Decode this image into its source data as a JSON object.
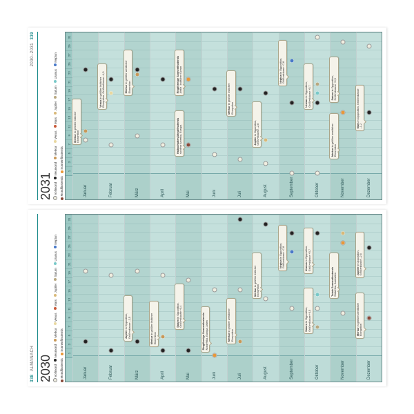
{
  "header": {
    "left_page_num": "338",
    "left_label": "ALMANACH",
    "right_label": "2030–2031",
    "right_page_num": "339"
  },
  "colors": {
    "vollmond": "#f0eee0",
    "neumond": "#222222",
    "merkur": "#c89858",
    "venus": "#e8d8a0",
    "mars": "#c85838",
    "jupiter": "#d8b878",
    "saturn": "#b8a880",
    "uranus": "#78c8c8",
    "neptun": "#4878c8",
    "mondfinsternis": "#884838",
    "sonnenfinsternis": "#e89838"
  },
  "legend": [
    {
      "key": "vollmond",
      "label": "Vollmond"
    },
    {
      "key": "neumond",
      "label": "Neumond"
    },
    {
      "key": "merkur",
      "label": "Merkur"
    },
    {
      "key": "venus",
      "label": "Venus"
    },
    {
      "key": "mars",
      "label": "Mars"
    },
    {
      "key": "jupiter",
      "label": "Jupiter"
    },
    {
      "key": "saturn",
      "label": "Saturn"
    },
    {
      "key": "uranus",
      "label": "Uranus"
    },
    {
      "key": "neptun",
      "label": "Neptun"
    },
    {
      "key": "mondfinsternis",
      "label": "Mondfinsternis"
    },
    {
      "key": "sonnenfinsternis",
      "label": "Sonnenfinsternis"
    }
  ],
  "date_ticks": [
    "1",
    "3",
    "5",
    "7",
    "9",
    "11",
    "13",
    "15",
    "17",
    "19",
    "21",
    "23",
    "25",
    "27",
    "29",
    "31"
  ],
  "months": [
    "Januar",
    "Februar",
    "März",
    "April",
    "Mai",
    "Juni",
    "Juli",
    "August",
    "September",
    "Oktober",
    "November",
    "Dezember"
  ],
  "years": {
    "2030": {
      "label": "2030",
      "events": [
        {
          "month": 0,
          "day": 19,
          "type": "moon",
          "phase": "full"
        },
        {
          "month": 0,
          "day": 4,
          "type": "moon",
          "phase": "new"
        },
        {
          "month": 1,
          "day": 18,
          "type": "moon",
          "phase": "full"
        },
        {
          "month": 1,
          "day": 2,
          "type": "moon",
          "phase": "new"
        },
        {
          "month": 2,
          "day": 19,
          "type": "moon",
          "phase": "full"
        },
        {
          "month": 2,
          "day": 4,
          "type": "moon",
          "phase": "new"
        },
        {
          "month": 3,
          "day": 18,
          "type": "moon",
          "phase": "full"
        },
        {
          "month": 3,
          "day": 2,
          "type": "moon",
          "phase": "new"
        },
        {
          "month": 4,
          "day": 17,
          "type": "moon",
          "phase": "full"
        },
        {
          "month": 4,
          "day": 2,
          "type": "moon",
          "phase": "new"
        },
        {
          "month": 5,
          "day": 15,
          "type": "moon",
          "phase": "full"
        },
        {
          "month": 5,
          "day": 1,
          "type": "moon",
          "phase": "new"
        },
        {
          "month": 6,
          "day": 15,
          "type": "moon",
          "phase": "full"
        },
        {
          "month": 6,
          "day": 30,
          "type": "moon",
          "phase": "new"
        },
        {
          "month": 7,
          "day": 13,
          "type": "moon",
          "phase": "full"
        },
        {
          "month": 7,
          "day": 29,
          "type": "moon",
          "phase": "new"
        },
        {
          "month": 8,
          "day": 11,
          "type": "moon",
          "phase": "full"
        },
        {
          "month": 8,
          "day": 27,
          "type": "moon",
          "phase": "new"
        },
        {
          "month": 9,
          "day": 11,
          "type": "moon",
          "phase": "full"
        },
        {
          "month": 9,
          "day": 27,
          "type": "moon",
          "phase": "new"
        },
        {
          "month": 10,
          "day": 10,
          "type": "moon",
          "phase": "full"
        },
        {
          "month": 10,
          "day": 25,
          "type": "moon",
          "phase": "new"
        },
        {
          "month": 11,
          "day": 9,
          "type": "moon",
          "phase": "full"
        },
        {
          "month": 11,
          "day": 24,
          "type": "moon",
          "phase": "new"
        },
        {
          "month": 3,
          "day": 5,
          "type": "planet",
          "planet": "merkur"
        },
        {
          "month": 6,
          "day": 4,
          "type": "planet",
          "planet": "merkur"
        },
        {
          "month": 8,
          "day": 23,
          "type": "planet",
          "planet": "neptun"
        },
        {
          "month": 9,
          "day": 7,
          "type": "planet",
          "planet": "saturn"
        },
        {
          "month": 9,
          "day": 14,
          "type": "planet",
          "planet": "uranus"
        },
        {
          "month": 10,
          "day": 27,
          "type": "planet",
          "planet": "jupiter"
        },
        {
          "month": 11,
          "day": 9,
          "type": "planet",
          "planet": "mondfinsternis"
        },
        {
          "month": 5,
          "day": 1,
          "type": "planet",
          "planet": "sonnenfinsternis"
        },
        {
          "month": 10,
          "day": 25,
          "type": "planet",
          "planet": "sonnenfinsternis"
        }
      ],
      "callouts": [
        {
          "month": 2,
          "left_pct": 10,
          "title": "Jupiter",
          "text": "in Opposition, Größenklasse –2,5"
        },
        {
          "month": 3,
          "left_pct": 6,
          "title": "Merkur",
          "text": "in größter östlicher Elongation"
        },
        {
          "month": 4,
          "left_pct": 18,
          "title": "Saturn",
          "text": "in Opposition, Größenklasse +0,4"
        },
        {
          "month": 5,
          "left_pct": 2,
          "title": "Ringförmige Sonnenfinsternis",
          "text": "Nordafrika, Europa, Asien"
        },
        {
          "month": 6,
          "left_pct": 8,
          "title": "Merkur",
          "text": "in größter westlicher Elongation"
        },
        {
          "month": 7,
          "left_pct": 40,
          "title": "Merkur",
          "text": "in größter östlicher Elongation"
        },
        {
          "month": 8,
          "left_pct": 60,
          "title": "Neptun",
          "text": "in Opposition, Größenklasse +7,8"
        },
        {
          "month": 9,
          "left_pct": 15,
          "title": "Saturn",
          "text": "in Opposition, Größenklasse +0,5"
        },
        {
          "month": 9,
          "left_pct": 58,
          "title": "Uranus",
          "text": "in Opposition, Größenklasse +5,7"
        },
        {
          "month": 10,
          "left_pct": 40,
          "title": "Totale Sonnenfinsternis",
          "text": "Südafrika, Australien"
        },
        {
          "month": 11,
          "left_pct": 12,
          "title": "Merkur",
          "text": "in größter westlicher Elongation"
        },
        {
          "month": 11,
          "left_pct": 55,
          "title": "Jupiter",
          "text": "in Opposition, Größenklasse –2,6"
        }
      ]
    },
    "2031": {
      "label": "2031",
      "events": [
        {
          "month": 0,
          "day": 8,
          "type": "moon",
          "phase": "full"
        },
        {
          "month": 0,
          "day": 23,
          "type": "moon",
          "phase": "new"
        },
        {
          "month": 1,
          "day": 7,
          "type": "moon",
          "phase": "full"
        },
        {
          "month": 1,
          "day": 21,
          "type": "moon",
          "phase": "new"
        },
        {
          "month": 2,
          "day": 9,
          "type": "moon",
          "phase": "full"
        },
        {
          "month": 2,
          "day": 23,
          "type": "moon",
          "phase": "new"
        },
        {
          "month": 3,
          "day": 7,
          "type": "moon",
          "phase": "full"
        },
        {
          "month": 3,
          "day": 21,
          "type": "moon",
          "phase": "new"
        },
        {
          "month": 4,
          "day": 7,
          "type": "moon",
          "phase": "full"
        },
        {
          "month": 4,
          "day": 21,
          "type": "moon",
          "phase": "new"
        },
        {
          "month": 5,
          "day": 5,
          "type": "moon",
          "phase": "full"
        },
        {
          "month": 5,
          "day": 19,
          "type": "moon",
          "phase": "new"
        },
        {
          "month": 6,
          "day": 4,
          "type": "moon",
          "phase": "full"
        },
        {
          "month": 6,
          "day": 19,
          "type": "moon",
          "phase": "new"
        },
        {
          "month": 7,
          "day": 3,
          "type": "moon",
          "phase": "full"
        },
        {
          "month": 7,
          "day": 18,
          "type": "moon",
          "phase": "new"
        },
        {
          "month": 8,
          "day": 1,
          "type": "moon",
          "phase": "full"
        },
        {
          "month": 8,
          "day": 16,
          "type": "moon",
          "phase": "new"
        },
        {
          "month": 9,
          "day": 1,
          "type": "moon",
          "phase": "full"
        },
        {
          "month": 9,
          "day": 16,
          "type": "moon",
          "phase": "new"
        },
        {
          "month": 9,
          "day": 30,
          "type": "moon",
          "phase": "full"
        },
        {
          "month": 10,
          "day": 14,
          "type": "moon",
          "phase": "new"
        },
        {
          "month": 10,
          "day": 29,
          "type": "moon",
          "phase": "full"
        },
        {
          "month": 11,
          "day": 14,
          "type": "moon",
          "phase": "new"
        },
        {
          "month": 11,
          "day": 28,
          "type": "moon",
          "phase": "full"
        },
        {
          "month": 0,
          "day": 10,
          "type": "planet",
          "planet": "merkur"
        },
        {
          "month": 1,
          "day": 18,
          "type": "planet",
          "planet": "venus"
        },
        {
          "month": 2,
          "day": 22,
          "type": "planet",
          "planet": "merkur"
        },
        {
          "month": 4,
          "day": 7,
          "type": "planet",
          "planet": "mondfinsternis"
        },
        {
          "month": 4,
          "day": 21,
          "type": "planet",
          "planet": "sonnenfinsternis"
        },
        {
          "month": 7,
          "day": 8,
          "type": "planet",
          "planet": "jupiter"
        },
        {
          "month": 8,
          "day": 25,
          "type": "planet",
          "planet": "neptun"
        },
        {
          "month": 9,
          "day": 20,
          "type": "planet",
          "planet": "saturn"
        },
        {
          "month": 9,
          "day": 18,
          "type": "planet",
          "planet": "uranus"
        },
        {
          "month": 10,
          "day": 14,
          "type": "planet",
          "planet": "sonnenfinsternis"
        }
      ],
      "callouts": [
        {
          "month": 0,
          "left_pct": 20,
          "title": "Merkur",
          "text": "in größter östlicher Elongation"
        },
        {
          "month": 1,
          "left_pct": 45,
          "title": "Venus",
          "text": "in größter östlicher Elongation, Größenklasse –4,5"
        },
        {
          "month": 2,
          "left_pct": 55,
          "title": "Merkur",
          "text": "in größter westlicher Elongation"
        },
        {
          "month": 4,
          "left_pct": 12,
          "title": "Halbschatten-Mondfinsternis",
          "text": "sichtbar Amerika, Europa"
        },
        {
          "month": 4,
          "left_pct": 55,
          "title": "Ringförmige Sonnenfinsternis",
          "text": "Afrika, Indischer Ozean"
        },
        {
          "month": 6,
          "left_pct": 40,
          "title": "Merkur",
          "text": "in größter östlicher Elongation"
        },
        {
          "month": 7,
          "left_pct": 18,
          "title": "Jupiter",
          "text": "in Opposition, Größenklasse –2,8"
        },
        {
          "month": 8,
          "left_pct": 62,
          "title": "Neptun",
          "text": "in Opposition, Größenklasse +7,8"
        },
        {
          "month": 9,
          "left_pct": 45,
          "title": "Uranus",
          "text": "in Opposition, Größenklasse +5,7"
        },
        {
          "month": 10,
          "left_pct": 10,
          "title": "Merkur",
          "text": "in größter westlicher Elongation"
        },
        {
          "month": 10,
          "left_pct": 50,
          "title": "Saturn",
          "text": "in Opposition, Größenklasse +0,5"
        },
        {
          "month": 11,
          "left_pct": 30,
          "title": "Mars",
          "text": "in Opposition, Größenklasse –1,2"
        }
      ]
    }
  }
}
